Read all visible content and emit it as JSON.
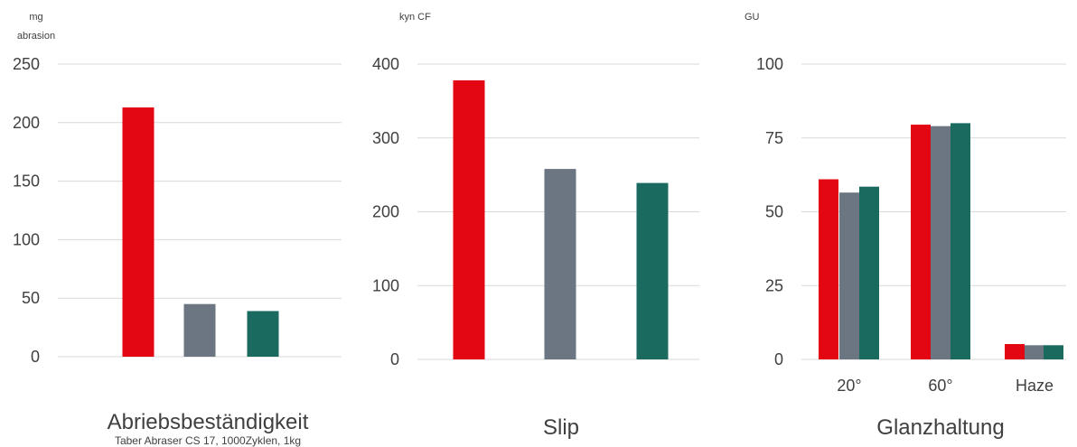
{
  "chart_data": [
    {
      "type": "bar",
      "title": "Abriebsbeständigkeit",
      "subtitle": "Taber Abraser CS 17, 1000Zyklen, 1kg",
      "ylabel_lines": [
        "mg",
        "abrasion"
      ],
      "ylim": [
        0,
        250
      ],
      "yticks": [
        "0",
        "50",
        "100",
        "150",
        "200",
        "250"
      ],
      "grid": true,
      "categories": [
        ""
      ],
      "series": [
        {
          "color": "#e30613",
          "values": [
            213
          ]
        },
        {
          "color": "#6b7682",
          "values": [
            45
          ]
        },
        {
          "color": "#1a6a60",
          "values": [
            39
          ]
        }
      ]
    },
    {
      "type": "bar",
      "title": "Slip",
      "ylabel_lines": [
        "kyn CF"
      ],
      "ylim": [
        0,
        400
      ],
      "yticks": [
        "0",
        "100",
        "200",
        "300",
        "400"
      ],
      "grid": true,
      "categories": [
        ""
      ],
      "series": [
        {
          "color": "#e30613",
          "values": [
            378
          ]
        },
        {
          "color": "#6b7682",
          "values": [
            258
          ]
        },
        {
          "color": "#1a6a60",
          "values": [
            239
          ]
        }
      ]
    },
    {
      "type": "bar",
      "title": "Glanzhaltung",
      "ylabel_lines": [
        "GU"
      ],
      "ylim": [
        0,
        100
      ],
      "yticks": [
        "0",
        "25",
        "50",
        "75",
        "100"
      ],
      "grid": true,
      "categories": [
        "20°",
        "60°",
        "Haze"
      ],
      "series": [
        {
          "color": "#e30613",
          "values": [
            61,
            79.5,
            5.2
          ]
        },
        {
          "color": "#6b7682",
          "values": [
            56.5,
            79,
            4.8
          ]
        },
        {
          "color": "#1a6a60",
          "values": [
            58.5,
            80,
            4.8
          ]
        }
      ]
    }
  ]
}
